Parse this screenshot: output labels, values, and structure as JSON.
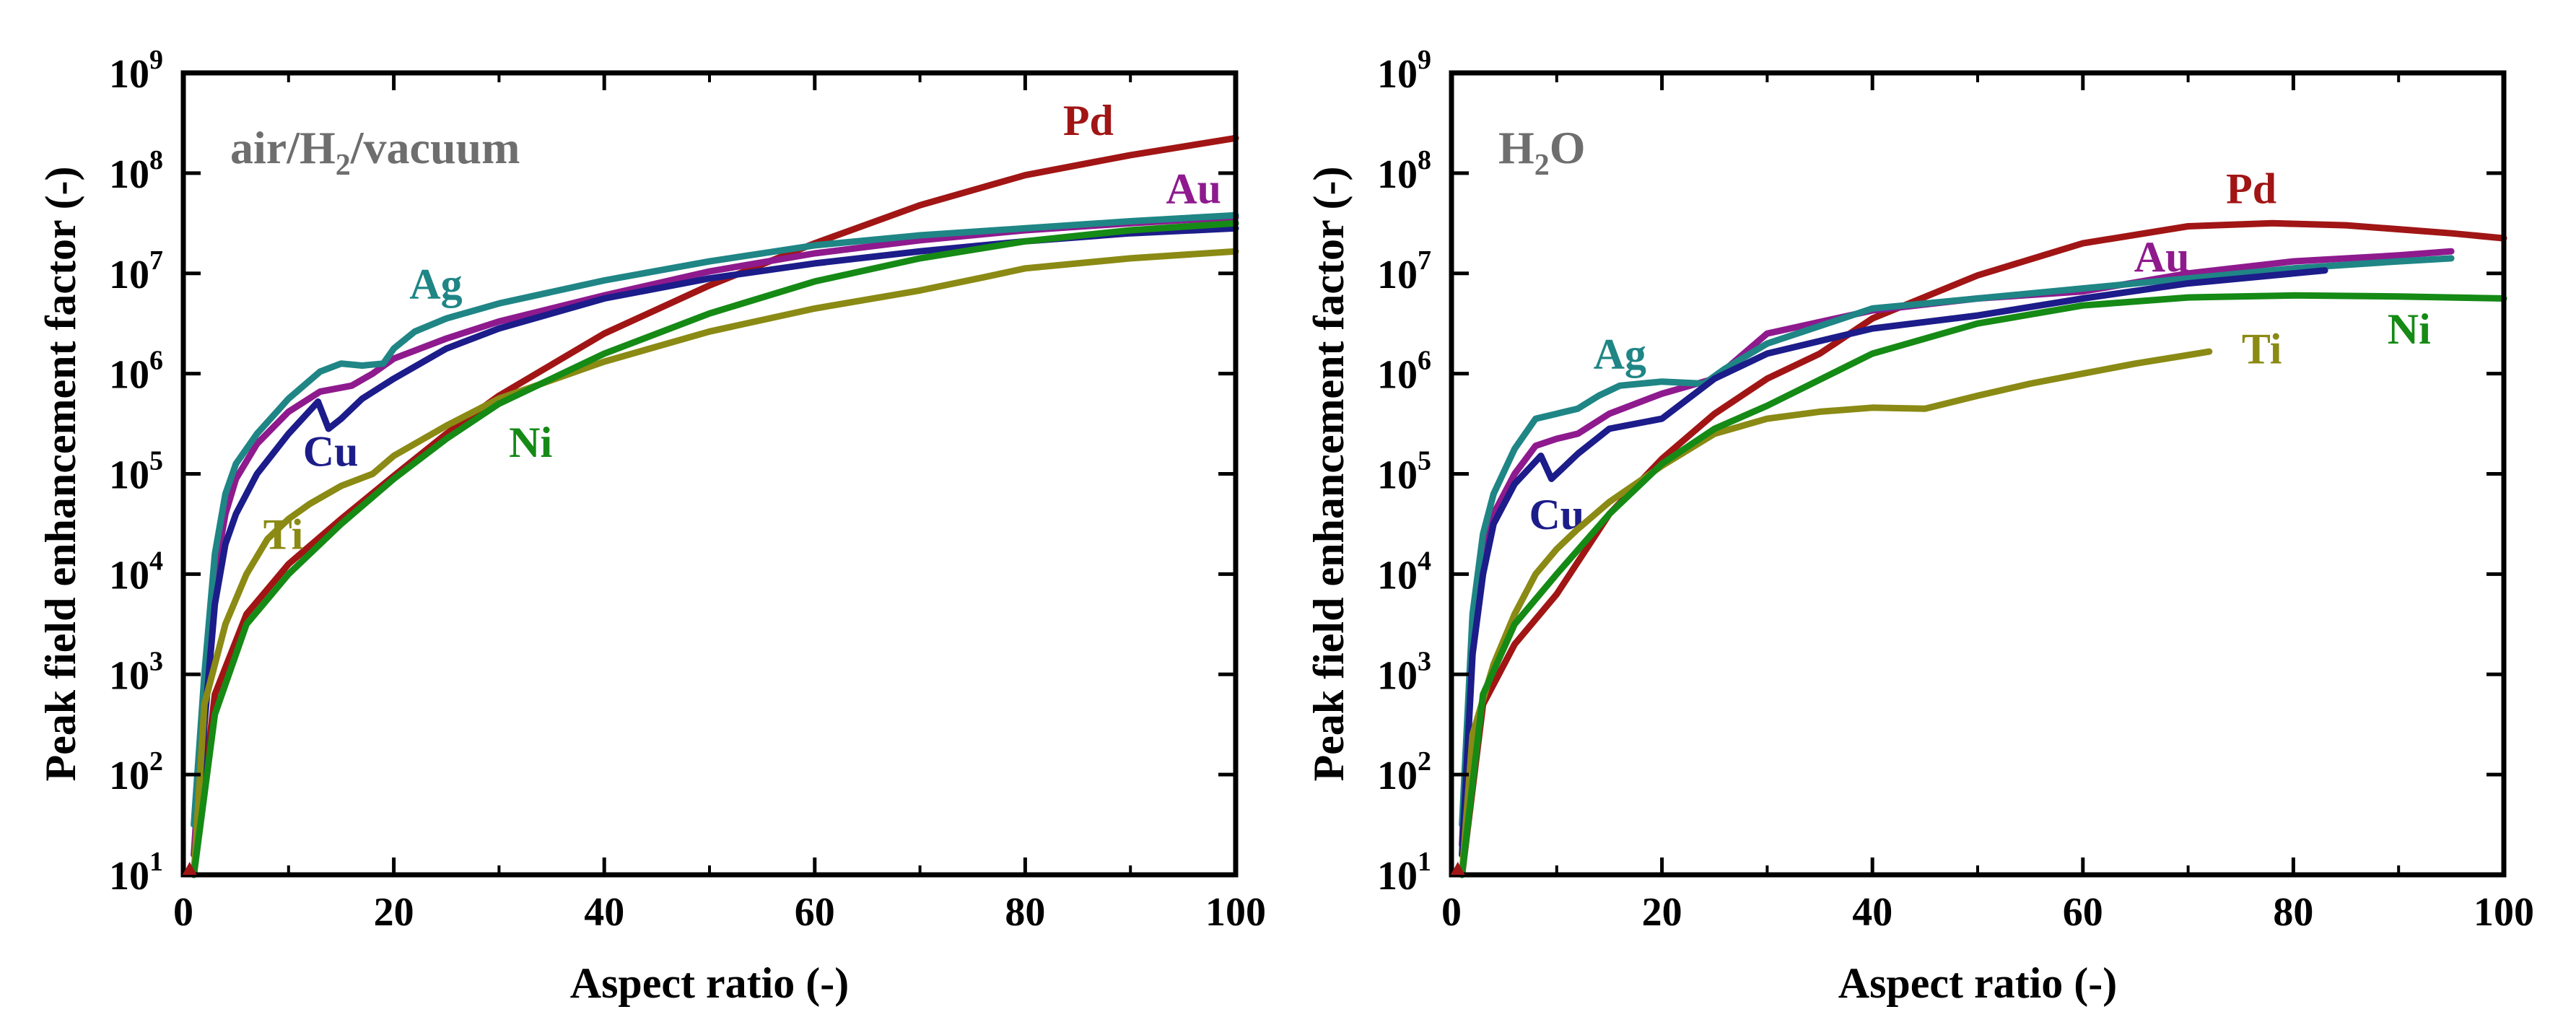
{
  "chart_data": [
    {
      "type": "line",
      "panel": "left",
      "annotation": "air/H2/vacuum",
      "annotation_parts": [
        "air/H",
        "2",
        "/vacuum"
      ],
      "xlabel": "Aspect ratio (-)",
      "ylabel": "Peak field enhancement factor (-)",
      "xlim": [
        0,
        100
      ],
      "ylim_log10": [
        1,
        9
      ],
      "yscale": "log",
      "x_ticks": [
        0,
        20,
        40,
        60,
        80,
        100
      ],
      "y_tick_exponents": [
        "1",
        "2",
        "3",
        "4",
        "5",
        "6",
        "7",
        "8",
        "9"
      ],
      "y_tick_base": "10",
      "series": [
        {
          "name": "Pd",
          "color": "#a11515",
          "label_at": [
            86,
            8.48
          ],
          "x": [
            1,
            3,
            6,
            10,
            15,
            20,
            25,
            30,
            40,
            50,
            60,
            70,
            80,
            90,
            100
          ],
          "log10_y": [
            1,
            2.8,
            3.6,
            4.1,
            4.55,
            4.98,
            5.4,
            5.78,
            6.4,
            6.88,
            7.3,
            7.68,
            7.98,
            8.18,
            8.35
          ]
        },
        {
          "name": "Au",
          "color": "#8e1a8e",
          "label_at": [
            96,
            7.8
          ],
          "x": [
            1,
            2,
            3,
            4,
            5,
            7,
            10,
            13,
            16,
            18,
            20,
            25,
            30,
            40,
            50,
            60,
            70,
            80,
            90,
            100
          ],
          "log10_y": [
            1.2,
            2.8,
            4.0,
            4.6,
            4.95,
            5.3,
            5.62,
            5.82,
            5.88,
            6.0,
            6.15,
            6.35,
            6.52,
            6.78,
            7.02,
            7.2,
            7.33,
            7.43,
            7.5,
            7.56
          ]
        },
        {
          "name": "Ag",
          "color": "#1f8585",
          "label_at": [
            24,
            6.85
          ],
          "x": [
            1,
            2,
            3,
            4,
            5,
            7,
            10,
            13,
            15,
            17,
            19,
            20,
            22,
            25,
            30,
            40,
            50,
            60,
            70,
            80,
            90,
            100
          ],
          "log10_y": [
            1.5,
            3.0,
            4.2,
            4.8,
            5.1,
            5.4,
            5.75,
            6.02,
            6.1,
            6.08,
            6.1,
            6.25,
            6.42,
            6.55,
            6.7,
            6.93,
            7.12,
            7.28,
            7.38,
            7.45,
            7.52,
            7.58
          ]
        },
        {
          "name": "Cu",
          "color": "#1c1c8a",
          "label_at": [
            14,
            5.18
          ],
          "x": [
            1,
            2,
            3,
            4,
            5,
            7,
            10,
            12.8,
            13.8,
            15,
            17,
            20,
            25,
            30,
            40,
            50,
            60,
            70,
            80,
            90,
            100
          ],
          "log10_y": [
            1,
            2.5,
            3.7,
            4.3,
            4.6,
            5.0,
            5.4,
            5.72,
            5.45,
            5.55,
            5.75,
            5.95,
            6.25,
            6.45,
            6.75,
            6.95,
            7.1,
            7.22,
            7.32,
            7.4,
            7.45
          ]
        },
        {
          "name": "Ti",
          "color": "#8a8a14",
          "label_at": [
            9.5,
            4.35
          ],
          "x": [
            1,
            2,
            4,
            6,
            8,
            10,
            12,
            15,
            18,
            20,
            25,
            30,
            40,
            50,
            60,
            70,
            76,
            80,
            90,
            100
          ],
          "log10_y": [
            1,
            2.7,
            3.5,
            4.0,
            4.35,
            4.55,
            4.7,
            4.88,
            5.0,
            5.18,
            5.48,
            5.75,
            6.12,
            6.42,
            6.65,
            6.83,
            6.96,
            7.05,
            7.15,
            7.22
          ]
        },
        {
          "name": "Ni",
          "color": "#158a15",
          "label_at": [
            33,
            5.27
          ],
          "x": [
            1,
            3,
            6,
            10,
            15,
            20,
            25,
            30,
            40,
            50,
            60,
            70,
            80,
            90,
            100
          ],
          "log10_y": [
            1,
            2.6,
            3.5,
            4.0,
            4.5,
            4.95,
            5.35,
            5.7,
            6.2,
            6.6,
            6.92,
            7.15,
            7.32,
            7.43,
            7.5
          ]
        }
      ]
    },
    {
      "type": "line",
      "panel": "right",
      "annotation": "H2O",
      "annotation_parts": [
        "H",
        "2",
        "O"
      ],
      "xlabel": "Aspect ratio (-)",
      "ylabel": "Peak field enhancement factor (-)",
      "xlim": [
        0,
        100
      ],
      "ylim_log10": [
        1,
        9
      ],
      "yscale": "log",
      "x_ticks": [
        0,
        20,
        40,
        60,
        80,
        100
      ],
      "y_tick_exponents": [
        "1",
        "2",
        "3",
        "4",
        "5",
        "6",
        "7",
        "8",
        "9"
      ],
      "y_tick_base": "10",
      "series": [
        {
          "name": "Pd",
          "color": "#a11515",
          "label_at": [
            76,
            7.8
          ],
          "x": [
            1,
            3,
            6,
            10,
            15,
            20,
            25,
            30,
            35,
            40,
            50,
            60,
            70,
            78,
            85,
            90,
            95,
            100
          ],
          "log10_y": [
            1,
            2.7,
            3.3,
            3.8,
            4.6,
            5.15,
            5.6,
            5.95,
            6.2,
            6.55,
            6.98,
            7.3,
            7.47,
            7.5,
            7.48,
            7.44,
            7.4,
            7.35
          ]
        },
        {
          "name": "Au",
          "color": "#8e1a8e",
          "label_at": [
            67.5,
            7.12
          ],
          "x": [
            1,
            2,
            3,
            4,
            6,
            8,
            10,
            12,
            15,
            20,
            25,
            30,
            40,
            50,
            60,
            70,
            80,
            90,
            95
          ],
          "log10_y": [
            1.3,
            3.5,
            4.3,
            4.6,
            5.0,
            5.28,
            5.35,
            5.4,
            5.6,
            5.8,
            5.95,
            6.4,
            6.63,
            6.75,
            6.82,
            7.0,
            7.12,
            7.18,
            7.22
          ]
        },
        {
          "name": "Ag",
          "color": "#1f8585",
          "label_at": [
            16,
            6.15
          ],
          "x": [
            1,
            2,
            3,
            4,
            6,
            8,
            10,
            12,
            14,
            16,
            20,
            24,
            26,
            30,
            40,
            50,
            60,
            70,
            80,
            90,
            95
          ],
          "log10_y": [
            1.5,
            3.6,
            4.4,
            4.8,
            5.25,
            5.55,
            5.6,
            5.65,
            5.78,
            5.88,
            5.92,
            5.9,
            6.05,
            6.3,
            6.65,
            6.75,
            6.85,
            6.95,
            7.05,
            7.12,
            7.15
          ]
        },
        {
          "name": "Cu",
          "color": "#1c1c8a",
          "label_at": [
            10,
            4.55
          ],
          "x": [
            1,
            2,
            3,
            4,
            6,
            8.5,
            9.5,
            10.5,
            12,
            15,
            20,
            25,
            30,
            40,
            50,
            60,
            70,
            80,
            83
          ],
          "log10_y": [
            1.2,
            3.2,
            4.0,
            4.5,
            4.9,
            5.18,
            4.95,
            5.05,
            5.2,
            5.45,
            5.55,
            5.95,
            6.2,
            6.45,
            6.58,
            6.75,
            6.9,
            7.0,
            7.03
          ]
        },
        {
          "name": "Ti",
          "color": "#8a8a14",
          "label_at": [
            77,
            6.2
          ],
          "x": [
            1,
            2,
            4,
            6,
            8,
            10,
            12,
            15,
            20,
            25,
            30,
            35,
            40,
            45,
            50,
            55,
            60,
            65,
            72
          ],
          "log10_y": [
            1,
            2.4,
            3.1,
            3.6,
            4.0,
            4.25,
            4.45,
            4.72,
            5.08,
            5.4,
            5.55,
            5.62,
            5.66,
            5.65,
            5.78,
            5.9,
            6.0,
            6.1,
            6.22
          ]
        },
        {
          "name": "Ni",
          "color": "#158a15",
          "label_at": [
            91,
            6.4
          ],
          "x": [
            1,
            3,
            6,
            10,
            15,
            20,
            25,
            30,
            40,
            50,
            60,
            70,
            80,
            90,
            100
          ],
          "log10_y": [
            1,
            2.8,
            3.5,
            4.0,
            4.6,
            5.1,
            5.45,
            5.68,
            6.2,
            6.5,
            6.68,
            6.76,
            6.78,
            6.77,
            6.75
          ]
        }
      ]
    }
  ]
}
